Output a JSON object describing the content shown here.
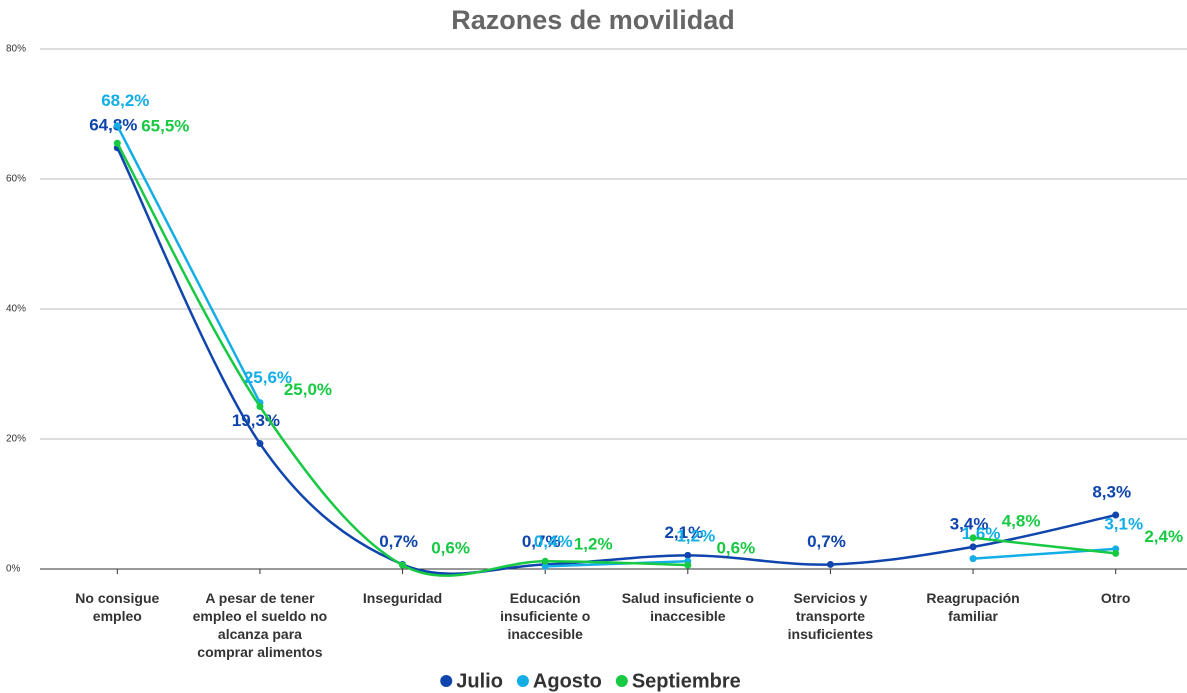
{
  "chart_data": {
    "type": "line",
    "title": "Razones de movilidad",
    "categories": [
      "No consigue empleo",
      "A pesar de tener empleo el sueldo no alcanza para comprar alimentos",
      "Inseguridad",
      "Educación insuficiente o inaccesible",
      "Salud insuficiente o inaccesible",
      "Servicios y transporte insuficientes",
      "Reagrupación familiar",
      "Otro"
    ],
    "series": [
      {
        "name": "Julio",
        "color": "#0f45ac",
        "values": [
          64.8,
          19.3,
          0.7,
          0.7,
          2.1,
          0.7,
          3.4,
          8.3
        ],
        "value_labels": [
          "64,8%",
          "19,3%",
          "0,7%",
          "0,7%",
          "2,1%",
          "0,7%",
          "3,4%",
          "8,3%"
        ]
      },
      {
        "name": "Agosto",
        "color": "#14aee6",
        "values": [
          68.2,
          25.6,
          null,
          0.4,
          1.2,
          null,
          1.6,
          3.1
        ],
        "value_labels": [
          "68,2%",
          "25,6%",
          null,
          "0,4%",
          "1,2%",
          null,
          "1,6%",
          "3,1%"
        ]
      },
      {
        "name": "Septiembre",
        "color": "#18c943",
        "values": [
          65.5,
          25.0,
          0.6,
          1.2,
          0.6,
          null,
          4.8,
          2.4
        ],
        "value_labels": [
          "65,5%",
          "25,0%",
          "0,6%",
          "1,2%",
          "0,6%",
          null,
          "4,8%",
          "2,4%"
        ]
      }
    ],
    "ylim": [
      0,
      80
    ],
    "yticks": [
      {
        "value": 0,
        "label": "0%"
      },
      {
        "value": 20,
        "label": "20%"
      },
      {
        "value": 40,
        "label": "40%"
      },
      {
        "value": 60,
        "label": "60%"
      },
      {
        "value": 80,
        "label": "80%"
      }
    ],
    "grid": true,
    "smooth": true,
    "legend": "bottom"
  }
}
